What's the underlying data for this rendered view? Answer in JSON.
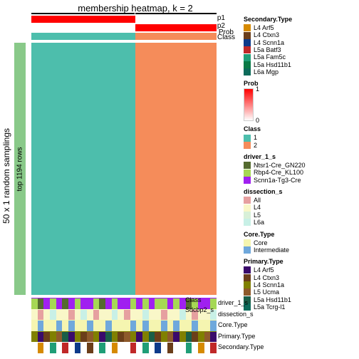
{
  "title": "membership heatmap, k = 2",
  "ylabel_outer": "50 x 1 random samplings",
  "ylabel_inner": "top 1194 rows",
  "row_anno_color": "#89c989",
  "top_anno": {
    "split": [
      56,
      44
    ],
    "rows": [
      {
        "name": "p1",
        "c1": "#ff0000",
        "c2": "#ffffff"
      },
      {
        "name": "p2",
        "c1": "#ffffff",
        "c2": "#ff0000"
      },
      {
        "name": "Class",
        "c1": "#4dbeac",
        "c2": "#f58c5a"
      }
    ],
    "overlap_label": "Prob"
  },
  "heatmap": {
    "c1": "#4dbeac",
    "c2": "#f58c5a"
  },
  "bottom_anno": [
    {
      "name": "driver_1_s",
      "base": "#a020f0",
      "stripes": [
        "#a6d854",
        "#556b2f",
        "#a020f0",
        "#a6d854",
        "#a020f0",
        "#556b2f",
        "#a020f0",
        "#a6d854",
        "#a020f0",
        "#a020f0",
        "#a6d854",
        "#556b2f",
        "#a020f0",
        "#a6d854",
        "#a020f0",
        "#a020f0",
        "#a6d854",
        "#a020f0",
        "#a6d854",
        "#a020f0",
        "#a6d854",
        "#a6d854",
        "#a020f0",
        "#a6d854",
        "#a020f0",
        "#556b2f",
        "#a6d854",
        "#a020f0",
        "#a020f0",
        "#a6d854"
      ]
    },
    {
      "name": "dissection_s",
      "base": "#f9f7c8",
      "stripes": [
        "#f9f7c8",
        "#e6a0a0",
        "#f9f7c8",
        "#c8f0e6",
        "#f9f7c8",
        "#f9f7c8",
        "#e6a0a0",
        "#f9f7c8",
        "#c8f0e6",
        "#f9f7c8",
        "#e6a0a0",
        "#f9f7c8",
        "#f9f7c8",
        "#c8f0e6",
        "#f9f7c8",
        "#e6a0a0",
        "#f9f7c8",
        "#f9f7c8",
        "#c8f0e6",
        "#f9f7c8",
        "#f9f7c8",
        "#e6a0a0",
        "#f9f7c8",
        "#f9f7c8",
        "#c8f0e6",
        "#f9f7c8",
        "#e6a0a0",
        "#f9f7c8",
        "#f9f7c8",
        "#c8f0e6"
      ]
    },
    {
      "name": "Core.Type",
      "base": "#f5f5b0",
      "stripes": [
        "#f5f5b0",
        "#6fa8dc",
        "#f5f5b0",
        "#f5f5b0",
        "#6fa8dc",
        "#f5f5b0",
        "#6fa8dc",
        "#f5f5b0",
        "#f5f5b0",
        "#6fa8dc",
        "#f5f5b0",
        "#f5f5b0",
        "#6fa8dc",
        "#f5f5b0",
        "#f5f5b0",
        "#f5f5b0",
        "#6fa8dc",
        "#f5f5b0",
        "#6fa8dc",
        "#f5f5b0",
        "#f5f5b0",
        "#6fa8dc",
        "#f5f5b0",
        "#6fa8dc",
        "#f5f5b0",
        "#f5f5b0",
        "#6fa8dc",
        "#f5f5b0",
        "#f5f5b0",
        "#6fa8dc"
      ]
    },
    {
      "name": "Primary.Type",
      "base": "#808000",
      "stripes": [
        "#808000",
        "#3a0a6b",
        "#6b3e1a",
        "#808000",
        "#8e5a2b",
        "#1a5e48",
        "#3a0a6b",
        "#808000",
        "#6b3e1a",
        "#8e5a2b",
        "#808000",
        "#3a0a6b",
        "#1a5e48",
        "#808000",
        "#6b3e1a",
        "#8e5a2b",
        "#808000",
        "#3a0a6b",
        "#808000",
        "#1a5e48",
        "#6b3e1a",
        "#808000",
        "#8e5a2b",
        "#3a0a6b",
        "#808000",
        "#1a5e48",
        "#6b3e1a",
        "#808000",
        "#8e5a2b",
        "#3a0a6b"
      ]
    },
    {
      "name": "Secondary.Type",
      "base": "#ffffff",
      "stripes": [
        "#ffffff",
        "#d68a00",
        "#ffffff",
        "#1f9e77",
        "#ffffff",
        "#c02828",
        "#ffffff",
        "#0d3a8a",
        "#ffffff",
        "#6b3e1a",
        "#ffffff",
        "#1f9e77",
        "#ffffff",
        "#d68a00",
        "#ffffff",
        "#ffffff",
        "#c02828",
        "#ffffff",
        "#1f9e77",
        "#ffffff",
        "#0d3a8a",
        "#ffffff",
        "#6b3e1a",
        "#ffffff",
        "#ffffff",
        "#1f9e77",
        "#ffffff",
        "#d68a00",
        "#ffffff",
        "#c02828"
      ]
    }
  ],
  "bottom_truncated_labels": [
    "Class",
    "Sdcbp2_s"
  ],
  "legend": {
    "prob_range": [
      "0",
      "1"
    ],
    "groups": [
      {
        "title": "Secondary.Type",
        "items": [
          {
            "c": "#d68a00",
            "l": "L4 Arf5"
          },
          {
            "c": "#6b3e1a",
            "l": "L4 Ctxn3"
          },
          {
            "c": "#0d3a8a",
            "l": "L4 Scnn1a"
          },
          {
            "c": "#c02828",
            "l": "L5a Batf3"
          },
          {
            "c": "#1f9e77",
            "l": "L5a Fam5c"
          },
          {
            "c": "#0a7a46",
            "l": "L5a Hsd11b1"
          },
          {
            "c": "#0d6b5a",
            "l": "L6a Mgp"
          }
        ]
      },
      {
        "title": "Class",
        "items": [
          {
            "c": "#4dbeac",
            "l": "1"
          },
          {
            "c": "#f58c5a",
            "l": "2"
          }
        ]
      },
      {
        "title": "driver_1_s",
        "items": [
          {
            "c": "#556b2f",
            "l": "Ntsr1-Cre_GN220"
          },
          {
            "c": "#a6d854",
            "l": "Rbp4-Cre_KL100"
          },
          {
            "c": "#a020f0",
            "l": "Scnn1a-Tg3-Cre"
          }
        ]
      },
      {
        "title": "dissection_s",
        "items": [
          {
            "c": "#e6a0a0",
            "l": "All"
          },
          {
            "c": "#f9f7c8",
            "l": "L4"
          },
          {
            "c": "#d8f0d8",
            "l": "L5"
          },
          {
            "c": "#c8f0e6",
            "l": "L6a"
          }
        ]
      },
      {
        "title": "Core.Type",
        "items": [
          {
            "c": "#f5f5b0",
            "l": "Core"
          },
          {
            "c": "#6fa8dc",
            "l": "Intermediate"
          }
        ]
      },
      {
        "title": "Primary.Type",
        "items": [
          {
            "c": "#3a0a6b",
            "l": "L4 Arf5"
          },
          {
            "c": "#6b3e1a",
            "l": "L4 Ctxn3"
          },
          {
            "c": "#808000",
            "l": "L4 Scnn1a"
          },
          {
            "c": "#8e5a2b",
            "l": "L5 Ucma"
          },
          {
            "c": "#1a5e48",
            "l": "L5a Hsd11b1"
          },
          {
            "c": "#0d6b5a",
            "l": "L5a Tcrg-l1"
          }
        ]
      }
    ]
  }
}
